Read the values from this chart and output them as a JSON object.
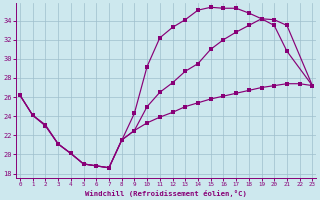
{
  "xlabel": "Windchill (Refroidissement éolien,°C)",
  "bg_color": "#cde8ee",
  "line_color": "#880077",
  "grid_color": "#9fbfcc",
  "xlim": [
    -0.3,
    23.3
  ],
  "ylim": [
    17.5,
    35.8
  ],
  "xticks": [
    0,
    1,
    2,
    3,
    4,
    5,
    6,
    7,
    8,
    9,
    10,
    11,
    12,
    13,
    14,
    15,
    16,
    17,
    18,
    19,
    20,
    21,
    22,
    23
  ],
  "yticks": [
    18,
    20,
    22,
    24,
    26,
    28,
    30,
    32,
    34
  ],
  "curve1_x": [
    0,
    1,
    2,
    3,
    4,
    5,
    6,
    7,
    9,
    10,
    11,
    12,
    13,
    14,
    15,
    16,
    17,
    18,
    19,
    20,
    21,
    23
  ],
  "curve1_y": [
    26.2,
    24.1,
    23.1,
    21.1,
    20.1,
    19.0,
    18.8,
    18.6,
    24.3,
    29.2,
    32.2,
    33.3,
    34.1,
    35.1,
    35.4,
    35.3,
    35.3,
    34.8,
    34.2,
    34.1,
    33.5,
    27.2
  ],
  "curve2_x": [
    0,
    1,
    2,
    3,
    4,
    5,
    6,
    7,
    8,
    9,
    10,
    11,
    12,
    13,
    14,
    15,
    16,
    17,
    18,
    19,
    20,
    21,
    23
  ],
  "curve2_y": [
    26.2,
    24.1,
    23.0,
    21.1,
    20.1,
    19.0,
    18.8,
    18.6,
    21.5,
    22.5,
    25.0,
    26.5,
    27.5,
    28.7,
    29.5,
    31.0,
    32.0,
    32.8,
    33.5,
    34.2,
    33.5,
    30.8,
    27.2
  ],
  "curve3_x": [
    0,
    1,
    2,
    3,
    4,
    5,
    6,
    7,
    8,
    9,
    10,
    11,
    12,
    13,
    14,
    15,
    16,
    17,
    18,
    19,
    20,
    21,
    22,
    23
  ],
  "curve3_y": [
    26.2,
    24.1,
    23.0,
    21.1,
    20.1,
    19.0,
    18.8,
    18.6,
    21.5,
    22.5,
    23.3,
    23.9,
    24.4,
    25.0,
    25.4,
    25.8,
    26.1,
    26.4,
    26.7,
    27.0,
    27.2,
    27.4,
    27.4,
    27.2
  ]
}
